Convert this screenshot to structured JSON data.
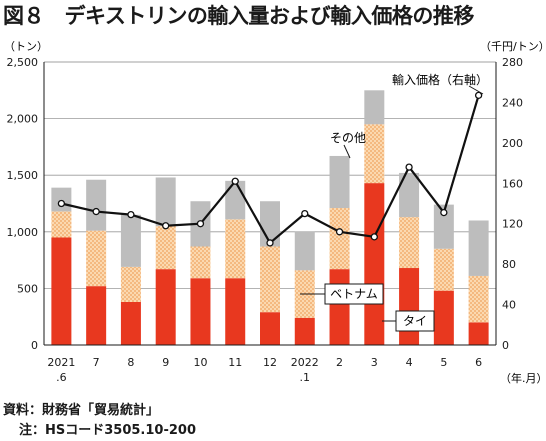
{
  "title": "図８　デキストリンの輸入量および輸入価格の推移",
  "notes": {
    "source": "資料：財務省「貿易統計」",
    "note": "注：HSコード3505.10-200"
  },
  "chart_data": {
    "type": "bar",
    "stacked": true,
    "categories": [
      "2021\n.6",
      "7",
      "8",
      "9",
      "10",
      "11",
      "12",
      "2022\n.1",
      "2",
      "3",
      "4",
      "5",
      "6"
    ],
    "series": [
      {
        "name": "タイ",
        "color": "#e8381f",
        "values": [
          950,
          520,
          380,
          670,
          590,
          590,
          290,
          240,
          670,
          1430,
          680,
          480,
          200
        ]
      },
      {
        "name": "ベトナム",
        "color": "#f8c896",
        "pattern": "dots",
        "values": [
          230,
          490,
          310,
          380,
          280,
          520,
          580,
          420,
          540,
          520,
          450,
          370,
          410
        ]
      },
      {
        "name": "その他",
        "color": "#bdbdbd",
        "values": [
          210,
          450,
          460,
          430,
          400,
          340,
          400,
          340,
          460,
          300,
          390,
          390,
          490
        ]
      }
    ],
    "line_series": {
      "name": "輸入価格（右軸）",
      "values": [
        140,
        132,
        129,
        118,
        120,
        162,
        101,
        130,
        112,
        107,
        176,
        131,
        247
      ]
    },
    "y_left": {
      "unit_label": "（トン）",
      "ylim": [
        0,
        2500
      ],
      "ticks": [
        "0",
        "500",
        "1,000",
        "1,500",
        "2,000",
        "2,500"
      ]
    },
    "y_right": {
      "unit_label": "（千円/トン）",
      "ylim": [
        0,
        280
      ],
      "ticks": [
        "0",
        "40",
        "80",
        "120",
        "160",
        "200",
        "240",
        "280"
      ]
    },
    "x_unit_label": "（年.月）",
    "annotations": {
      "tai": "タイ",
      "vietnam": "ベトナム",
      "other": "その他",
      "price": "輸入価格（右軸）"
    },
    "grid": "horizontal"
  }
}
